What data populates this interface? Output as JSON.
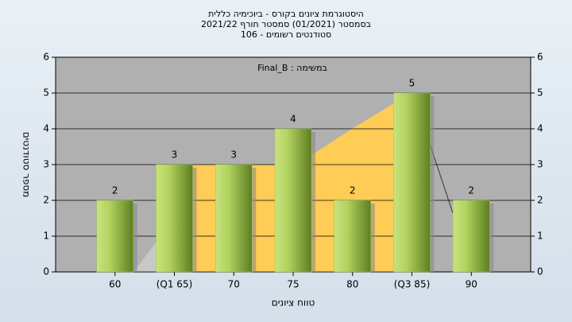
{
  "chart_data": {
    "type": "bar",
    "title": [
      "היסטוגרמת ציונים בקורס - ביוכימיה כללית",
      "בסמסטר  (01/2021)  סמסטר חורף 2021/22",
      "סטודנטים רשומים - 106"
    ],
    "annotation": "במשימה : Final_B",
    "categories": [
      "60",
      "(Q1 65)",
      "70",
      "75",
      "80",
      "(Q3 85)",
      "90"
    ],
    "values": [
      2,
      3,
      3,
      4,
      2,
      5,
      2
    ],
    "color": "#9cc44a",
    "ylim": [
      0,
      6
    ],
    "yticks": [
      0,
      1,
      2,
      3,
      4,
      5,
      6
    ],
    "grid": true,
    "xlabel": "טווח ציונים",
    "ylabel": "מספר סטודנטים"
  }
}
